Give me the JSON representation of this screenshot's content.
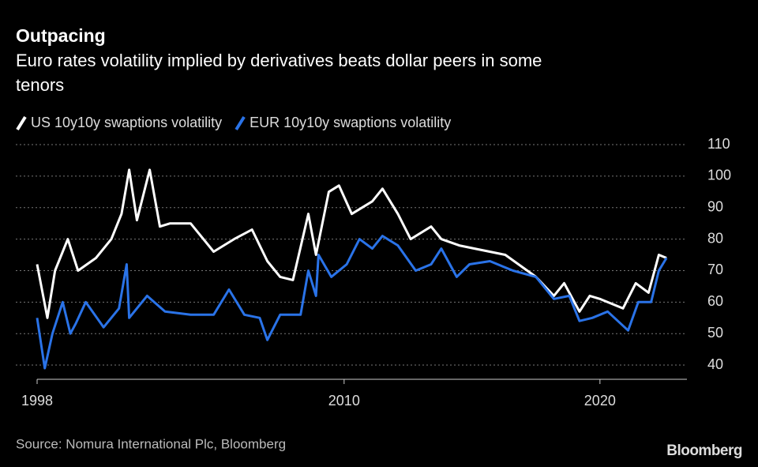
{
  "chart_data": {
    "type": "line",
    "title": "Outpacing",
    "subtitle": [
      "Euro rates volatility implied by derivatives beats dollar peers in some",
      "tenors"
    ],
    "source": "Source: Nomura International Plc, Bloomberg",
    "brand": "Bloomberg",
    "xlim": [
      1998,
      2023.4
    ],
    "xticks": [
      1998,
      2010,
      2020
    ],
    "ylim": [
      35.5,
      110
    ],
    "yticks": [
      40,
      50,
      60,
      70,
      80,
      90,
      100,
      110
    ],
    "grid": true,
    "series": [
      {
        "name": "US 10y10y swaptions volatility",
        "color": "#ffffff",
        "x": [
          1998.0,
          1998.4,
          1998.7,
          1999.2,
          1999.6,
          2000.3,
          2000.9,
          2001.3,
          2001.6,
          2001.9,
          2002.4,
          2002.8,
          2003.2,
          2004.0,
          2004.9,
          2005.7,
          2006.4,
          2007.0,
          2007.5,
          2008.0,
          2008.6,
          2008.9,
          2009.4,
          2009.8,
          2010.3,
          2011.1,
          2011.5,
          2012.1,
          2012.6,
          2013.4,
          2013.8,
          2014.5,
          2015.1,
          2016.3,
          2017.5,
          2018.2,
          2018.6,
          2019.2,
          2019.6,
          2020.0,
          2020.9,
          2021.4,
          2021.9,
          2022.3,
          2022.6
        ],
        "values": [
          72,
          55,
          70,
          80,
          70,
          74,
          80,
          88,
          102,
          86,
          102,
          84,
          85,
          85,
          76,
          80,
          83,
          73,
          68,
          67,
          88,
          75,
          95,
          97,
          88,
          92,
          96,
          88,
          80,
          84,
          80,
          78,
          77,
          75,
          68,
          62,
          66,
          57,
          62,
          61,
          58,
          66,
          63,
          75,
          74
        ]
      },
      {
        "name": "EUR 10y10y swaptions volatility",
        "color": "#2a73e8",
        "x": [
          1998.0,
          1998.3,
          1998.6,
          1999.0,
          1999.3,
          1999.5,
          1999.9,
          2000.6,
          2001.2,
          2001.5,
          2001.6,
          2002.3,
          2003.0,
          2004.0,
          2004.9,
          2005.5,
          2006.1,
          2006.7,
          2007.0,
          2007.5,
          2008.3,
          2008.6,
          2008.9,
          2009.0,
          2009.5,
          2010.1,
          2010.6,
          2011.1,
          2011.5,
          2012.1,
          2012.8,
          2013.4,
          2013.8,
          2014.4,
          2014.9,
          2015.7,
          2016.6,
          2017.5,
          2018.2,
          2018.8,
          2019.2,
          2019.7,
          2020.3,
          2021.1,
          2021.5,
          2022.0,
          2022.3,
          2022.6
        ],
        "values": [
          55,
          39,
          50,
          60,
          50,
          53,
          60,
          52,
          58,
          72,
          55,
          62,
          57,
          56,
          56,
          64,
          56,
          55,
          48,
          56,
          56,
          70,
          62,
          75,
          68,
          72,
          80,
          77,
          81,
          78,
          70,
          72,
          77,
          68,
          72,
          73,
          70,
          68,
          61,
          62,
          54,
          55,
          57,
          51,
          60,
          60,
          70,
          74
        ]
      }
    ]
  }
}
